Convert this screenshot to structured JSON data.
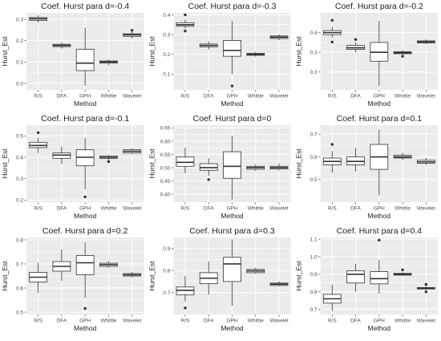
{
  "figure": {
    "panel_bg": "#ebebeb",
    "grid_color": "#ffffff",
    "box_fill": "#ffffff",
    "box_stroke": "#333333",
    "text_color": "#222222",
    "tick_text_color": "#4d4d4d"
  },
  "chart_data": [
    {
      "type": "boxplot",
      "title": "Coef. Hurst para d=-0.4",
      "xlabel": "Method",
      "ylabel": "Hurst_Est",
      "categories": [
        "R/S",
        "DFA",
        "GPH",
        "Whittle",
        "Wavelet"
      ],
      "ylim": [
        -0.03,
        0.33
      ],
      "yticks": [
        0.0,
        0.1,
        0.2,
        0.3
      ],
      "ytick_labels": [
        "0.0",
        "0.1",
        "0.2",
        "0.3"
      ],
      "boxes": [
        {
          "whislo": 0.285,
          "q1": 0.295,
          "med": 0.302,
          "q3": 0.308,
          "whishi": 0.318,
          "outliers": []
        },
        {
          "whislo": 0.163,
          "q1": 0.172,
          "med": 0.178,
          "q3": 0.183,
          "whishi": 0.192,
          "outliers": []
        },
        {
          "whislo": -0.01,
          "q1": 0.06,
          "med": 0.095,
          "q3": 0.16,
          "whishi": 0.26,
          "outliers": []
        },
        {
          "whislo": 0.085,
          "q1": 0.095,
          "med": 0.1,
          "q3": 0.105,
          "whishi": 0.112,
          "outliers": []
        },
        {
          "whislo": 0.21,
          "q1": 0.22,
          "med": 0.227,
          "q3": 0.232,
          "whishi": 0.24,
          "outliers": [
            0.248
          ]
        }
      ]
    },
    {
      "type": "boxplot",
      "title": "Coef. Hurst para d=-0.3",
      "xlabel": "Method",
      "ylabel": "Hurst_Est",
      "categories": [
        "R/S",
        "DFA",
        "GPH",
        "Whittle",
        "Wavelet"
      ],
      "ylim": [
        0.02,
        0.41
      ],
      "yticks": [
        0.1,
        0.2,
        0.3,
        0.4
      ],
      "ytick_labels": [
        "0.1",
        "0.2",
        "0.3",
        "0.4"
      ],
      "boxes": [
        {
          "whislo": 0.33,
          "q1": 0.342,
          "med": 0.35,
          "q3": 0.36,
          "whishi": 0.375,
          "outliers": [
            0.4,
            0.318
          ]
        },
        {
          "whislo": 0.225,
          "q1": 0.238,
          "med": 0.245,
          "q3": 0.252,
          "whishi": 0.265,
          "outliers": []
        },
        {
          "whislo": 0.1,
          "q1": 0.19,
          "med": 0.22,
          "q3": 0.27,
          "whishi": 0.37,
          "outliers": [
            0.04
          ]
        },
        {
          "whislo": 0.188,
          "q1": 0.195,
          "med": 0.2,
          "q3": 0.205,
          "whishi": 0.212,
          "outliers": []
        },
        {
          "whislo": 0.272,
          "q1": 0.28,
          "med": 0.287,
          "q3": 0.293,
          "whishi": 0.3,
          "outliers": []
        }
      ]
    },
    {
      "type": "boxplot",
      "title": "Coef. Hurst para d=-0.2",
      "xlabel": "Method",
      "ylabel": "Hurst_Est",
      "categories": [
        "R/S",
        "DFA",
        "GPH",
        "Whittle",
        "Wavelet"
      ],
      "ylim": [
        0.11,
        0.5
      ],
      "yticks": [
        0.2,
        0.3,
        0.4
      ],
      "ytick_labels": [
        "0.2",
        "0.3",
        "0.4"
      ],
      "boxes": [
        {
          "whislo": 0.375,
          "q1": 0.39,
          "med": 0.4,
          "q3": 0.41,
          "whishi": 0.43,
          "outliers": [
            0.462,
            0.352
          ]
        },
        {
          "whislo": 0.3,
          "q1": 0.315,
          "med": 0.323,
          "q3": 0.335,
          "whishi": 0.35,
          "outliers": [
            0.365
          ]
        },
        {
          "whislo": 0.13,
          "q1": 0.255,
          "med": 0.3,
          "q3": 0.35,
          "whishi": 0.46,
          "outliers": []
        },
        {
          "whislo": 0.288,
          "q1": 0.293,
          "med": 0.298,
          "q3": 0.303,
          "whishi": 0.31,
          "outliers": [
            0.28
          ]
        },
        {
          "whislo": 0.342,
          "q1": 0.348,
          "med": 0.353,
          "q3": 0.358,
          "whishi": 0.365,
          "outliers": []
        }
      ]
    },
    {
      "type": "boxplot",
      "title": "Coef. Hurst para d=-0.1",
      "xlabel": "Method",
      "ylabel": "Hurst_Est",
      "categories": [
        "R/S",
        "DFA",
        "GPH",
        "Whittle",
        "Wavelet"
      ],
      "ylim": [
        0.19,
        0.55
      ],
      "yticks": [
        0.2,
        0.3,
        0.4,
        0.5
      ],
      "ytick_labels": [
        "0.2",
        "0.3",
        "0.4",
        "0.5"
      ],
      "boxes": [
        {
          "whislo": 0.42,
          "q1": 0.445,
          "med": 0.455,
          "q3": 0.47,
          "whishi": 0.49,
          "outliers": [
            0.515
          ]
        },
        {
          "whislo": 0.37,
          "q1": 0.395,
          "med": 0.41,
          "q3": 0.42,
          "whishi": 0.45,
          "outliers": []
        },
        {
          "whislo": 0.25,
          "q1": 0.36,
          "med": 0.4,
          "q3": 0.435,
          "whishi": 0.49,
          "outliers": [
            0.215
          ]
        },
        {
          "whislo": 0.388,
          "q1": 0.395,
          "med": 0.4,
          "q3": 0.405,
          "whishi": 0.41,
          "outliers": [
            0.38
          ]
        },
        {
          "whislo": 0.415,
          "q1": 0.42,
          "med": 0.428,
          "q3": 0.435,
          "whishi": 0.442,
          "outliers": []
        }
      ]
    },
    {
      "type": "boxplot",
      "title": "Coef. Hurst para d=0",
      "xlabel": "Method",
      "ylabel": "Hurst_Est",
      "categories": [
        "R/S",
        "DFA",
        "GPH",
        "Whittle",
        "Wavelet"
      ],
      "ylim": [
        0.37,
        0.66
      ],
      "yticks": [
        0.4,
        0.45,
        0.5,
        0.55,
        0.6,
        0.65
      ],
      "ytick_labels": [
        "0.40",
        "0.45",
        "0.50",
        "0.55",
        "0.60",
        "0.65"
      ],
      "boxes": [
        {
          "whislo": 0.48,
          "q1": 0.505,
          "med": 0.52,
          "q3": 0.54,
          "whishi": 0.575,
          "outliers": []
        },
        {
          "whislo": 0.47,
          "q1": 0.49,
          "med": 0.5,
          "q3": 0.515,
          "whishi": 0.535,
          "outliers": [
            0.455
          ]
        },
        {
          "whislo": 0.38,
          "q1": 0.46,
          "med": 0.505,
          "q3": 0.56,
          "whishi": 0.62,
          "outliers": []
        },
        {
          "whislo": 0.488,
          "q1": 0.494,
          "med": 0.5,
          "q3": 0.505,
          "whishi": 0.512,
          "outliers": []
        },
        {
          "whislo": 0.49,
          "q1": 0.495,
          "med": 0.5,
          "q3": 0.505,
          "whishi": 0.515,
          "outliers": []
        }
      ]
    },
    {
      "type": "boxplot",
      "title": "Coef. Hurst para d=0.1",
      "xlabel": "Method",
      "ylabel": "Hurst_Est",
      "categories": [
        "R/S",
        "DFA",
        "GPH",
        "Whittle",
        "Wavelet"
      ],
      "ylim": [
        0.4,
        0.74
      ],
      "yticks": [
        0.5,
        0.6,
        0.7
      ],
      "ytick_labels": [
        "0.5",
        "0.6",
        "0.7"
      ],
      "boxes": [
        {
          "whislo": 0.53,
          "q1": 0.565,
          "med": 0.58,
          "q3": 0.595,
          "whishi": 0.625,
          "outliers": [
            0.655
          ]
        },
        {
          "whislo": 0.535,
          "q1": 0.565,
          "med": 0.58,
          "q3": 0.6,
          "whishi": 0.64,
          "outliers": []
        },
        {
          "whislo": 0.43,
          "q1": 0.545,
          "med": 0.6,
          "q3": 0.655,
          "whishi": 0.72,
          "outliers": []
        },
        {
          "whislo": 0.588,
          "q1": 0.595,
          "med": 0.6,
          "q3": 0.607,
          "whishi": 0.618,
          "outliers": []
        },
        {
          "whislo": 0.565,
          "q1": 0.572,
          "med": 0.578,
          "q3": 0.585,
          "whishi": 0.595,
          "outliers": []
        }
      ]
    },
    {
      "type": "boxplot",
      "title": "Coef. Hurst para d=0.2",
      "xlabel": "Method",
      "ylabel": "Hurst_Est",
      "categories": [
        "R/S",
        "DFA",
        "GPH",
        "Whittle",
        "Wavelet"
      ],
      "ylim": [
        0.49,
        0.81
      ],
      "yticks": [
        0.5,
        0.6,
        0.7,
        0.8
      ],
      "ytick_labels": [
        "0.5",
        "0.6",
        "0.7",
        "0.8"
      ],
      "boxes": [
        {
          "whislo": 0.58,
          "q1": 0.625,
          "med": 0.645,
          "q3": 0.665,
          "whishi": 0.705,
          "outliers": []
        },
        {
          "whislo": 0.63,
          "q1": 0.67,
          "med": 0.69,
          "q3": 0.71,
          "whishi": 0.76,
          "outliers": []
        },
        {
          "whislo": 0.56,
          "q1": 0.655,
          "med": 0.705,
          "q3": 0.735,
          "whishi": 0.79,
          "outliers": [
            0.515
          ]
        },
        {
          "whislo": 0.685,
          "q1": 0.69,
          "med": 0.697,
          "q3": 0.703,
          "whishi": 0.712,
          "outliers": []
        },
        {
          "whislo": 0.645,
          "q1": 0.65,
          "med": 0.655,
          "q3": 0.66,
          "whishi": 0.667,
          "outliers": []
        }
      ]
    },
    {
      "type": "boxplot",
      "title": "Coef. Hurst para d=0.3",
      "xlabel": "Method",
      "ylabel": "Hurst_Est",
      "categories": [
        "R/S",
        "DFA",
        "GPH",
        "Whittle",
        "Wavelet"
      ],
      "ylim": [
        0.6,
        0.95
      ],
      "yticks": [
        0.7,
        0.8,
        0.9
      ],
      "ytick_labels": [
        "0.7",
        "0.8",
        "0.9"
      ],
      "boxes": [
        {
          "whislo": 0.66,
          "q1": 0.69,
          "med": 0.71,
          "q3": 0.725,
          "whishi": 0.775,
          "outliers": [
            0.63
          ]
        },
        {
          "whislo": 0.69,
          "q1": 0.74,
          "med": 0.765,
          "q3": 0.79,
          "whishi": 0.84,
          "outliers": []
        },
        {
          "whislo": 0.64,
          "q1": 0.75,
          "med": 0.83,
          "q3": 0.86,
          "whishi": 0.94,
          "outliers": []
        },
        {
          "whislo": 0.785,
          "q1": 0.79,
          "med": 0.798,
          "q3": 0.805,
          "whishi": 0.812,
          "outliers": []
        },
        {
          "whislo": 0.728,
          "q1": 0.732,
          "med": 0.738,
          "q3": 0.743,
          "whishi": 0.75,
          "outliers": []
        }
      ]
    },
    {
      "type": "boxplot",
      "title": "Coef. Hurst para d=0.4",
      "xlabel": "Method",
      "ylabel": "Hurst_Est",
      "categories": [
        "R/S",
        "DFA",
        "GPH",
        "Whittle",
        "Wavelet"
      ],
      "ylim": [
        0.67,
        1.11
      ],
      "yticks": [
        0.7,
        0.8,
        0.9,
        1.0,
        1.1
      ],
      "ytick_labels": [
        "0.7",
        "0.8",
        "0.9",
        "1.0",
        "1.1"
      ],
      "boxes": [
        {
          "whislo": 0.69,
          "q1": 0.735,
          "med": 0.76,
          "q3": 0.785,
          "whishi": 0.84,
          "outliers": []
        },
        {
          "whislo": 0.8,
          "q1": 0.85,
          "med": 0.9,
          "q3": 0.92,
          "whishi": 0.96,
          "outliers": []
        },
        {
          "whislo": 0.79,
          "q1": 0.845,
          "med": 0.875,
          "q3": 0.915,
          "whishi": 0.98,
          "outliers": [
            1.095
          ]
        },
        {
          "whislo": 0.89,
          "q1": 0.895,
          "med": 0.9,
          "q3": 0.905,
          "whishi": 0.91,
          "outliers": [
            0.925
          ]
        },
        {
          "whislo": 0.812,
          "q1": 0.816,
          "med": 0.82,
          "q3": 0.824,
          "whishi": 0.83,
          "outliers": [
            0.8,
            0.842
          ]
        }
      ]
    }
  ]
}
